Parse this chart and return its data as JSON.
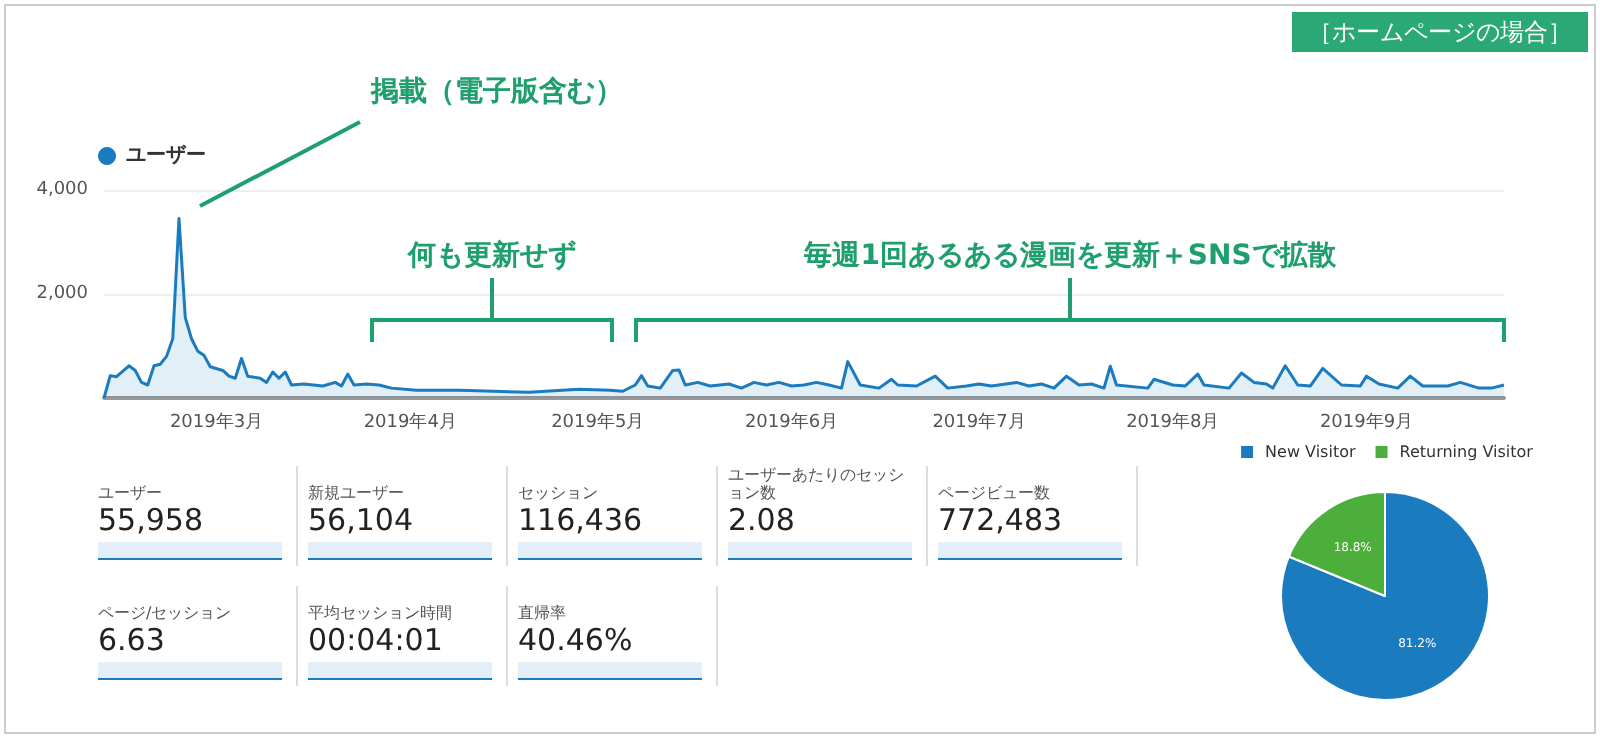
{
  "chart_data": [
    {
      "type": "area",
      "title": "［ホームページの場合］",
      "legend": "top left",
      "grid": "y",
      "x": [
        "2019-02-11",
        "2019-02-12",
        "2019-02-13",
        "2019-02-15",
        "2019-02-16",
        "2019-02-17",
        "2019-02-18",
        "2019-02-19",
        "2019-02-20",
        "2019-02-21",
        "2019-02-22",
        "2019-02-23",
        "2019-02-24",
        "2019-02-25",
        "2019-02-26",
        "2019-02-27",
        "2019-02-28",
        "2019-03-02",
        "2019-03-03",
        "2019-03-04",
        "2019-03-05",
        "2019-03-06",
        "2019-03-08",
        "2019-03-09",
        "2019-03-10",
        "2019-03-11",
        "2019-03-12",
        "2019-03-13",
        "2019-03-15",
        "2019-03-18",
        "2019-03-20",
        "2019-03-21",
        "2019-03-22",
        "2019-03-23",
        "2019-03-25",
        "2019-03-27",
        "2019-03-29",
        "2019-04-02",
        "2019-04-09",
        "2019-04-20",
        "2019-04-28",
        "2019-05-03",
        "2019-05-05",
        "2019-05-07",
        "2019-05-08",
        "2019-05-09",
        "2019-05-11",
        "2019-05-13",
        "2019-05-14",
        "2019-05-15",
        "2019-05-17",
        "2019-05-19",
        "2019-05-22",
        "2019-05-24",
        "2019-05-26",
        "2019-05-28",
        "2019-05-30",
        "2019-06-01",
        "2019-06-03",
        "2019-06-05",
        "2019-06-07",
        "2019-06-09",
        "2019-06-10",
        "2019-06-12",
        "2019-06-15",
        "2019-06-17",
        "2019-06-18",
        "2019-06-21",
        "2019-06-24",
        "2019-06-26",
        "2019-06-29",
        "2019-07-01",
        "2019-07-03",
        "2019-07-07",
        "2019-07-09",
        "2019-07-11",
        "2019-07-13",
        "2019-07-15",
        "2019-07-17",
        "2019-07-19",
        "2019-07-21",
        "2019-07-22",
        "2019-07-23",
        "2019-07-28",
        "2019-07-29",
        "2019-08-01",
        "2019-08-03",
        "2019-08-05",
        "2019-08-06",
        "2019-08-10",
        "2019-08-12",
        "2019-08-14",
        "2019-08-16",
        "2019-08-17",
        "2019-08-19",
        "2019-08-21",
        "2019-08-23",
        "2019-08-25",
        "2019-08-28",
        "2019-08-31",
        "2019-09-01",
        "2019-09-03",
        "2019-09-06",
        "2019-09-08",
        "2019-09-10",
        "2019-09-14",
        "2019-09-16",
        "2019-09-19",
        "2019-09-21",
        "2019-09-23"
      ],
      "series": [
        {
          "name": "ユーザー",
          "color": "#1a7bbf",
          "values": [
            0,
            430,
            410,
            620,
            530,
            300,
            250,
            620,
            650,
            800,
            1140,
            3450,
            1550,
            1140,
            900,
            820,
            600,
            530,
            420,
            380,
            760,
            420,
            380,
            300,
            500,
            380,
            500,
            250,
            270,
            230,
            300,
            230,
            460,
            250,
            270,
            250,
            190,
            150,
            150,
            110,
            170,
            150,
            130,
            250,
            430,
            230,
            190,
            530,
            540,
            250,
            300,
            230,
            270,
            190,
            300,
            250,
            300,
            230,
            250,
            300,
            250,
            190,
            700,
            250,
            190,
            360,
            250,
            230,
            420,
            190,
            230,
            270,
            230,
            300,
            230,
            270,
            190,
            420,
            250,
            270,
            190,
            610,
            250,
            190,
            360,
            250,
            230,
            460,
            250,
            190,
            480,
            300,
            270,
            190,
            620,
            250,
            230,
            570,
            250,
            230,
            420,
            270,
            190,
            420,
            230,
            230,
            300,
            190,
            190,
            250
          ]
        }
      ],
      "xlim": [
        "2019-02-11",
        "2019-09-23"
      ],
      "xticks": [
        {
          "value": "2019-03-01",
          "label": "2019年3月"
        },
        {
          "value": "2019-04-01",
          "label": "2019年4月"
        },
        {
          "value": "2019-05-01",
          "label": "2019年5月"
        },
        {
          "value": "2019-06-01",
          "label": "2019年6月"
        },
        {
          "value": "2019-07-01",
          "label": "2019年7月"
        },
        {
          "value": "2019-08-01",
          "label": "2019年8月"
        },
        {
          "value": "2019-09-01",
          "label": "2019年9月"
        }
      ],
      "ylim": [
        0,
        4000
      ],
      "yticks": [
        {
          "value": 2000,
          "label": "2,000"
        },
        {
          "value": 4000,
          "label": "4,000"
        }
      ],
      "annotations": [
        "掲載（電子版含む）",
        "何も更新せず",
        "毎週1回あるある漫画を更新＋SNSで拡散"
      ]
    },
    {
      "type": "other",
      "categories": [
        "ユーザー",
        "新規ユーザー",
        "セッション",
        "ユーザーあたりのセッション数",
        "ページビュー数",
        "ページ/セッション",
        "平均セッション時間",
        "直帰率"
      ],
      "value_labels": [
        "55,958",
        "56,104",
        "116,436",
        "2.08",
        "772,483",
        "6.63",
        "00:04:01",
        "40.46%"
      ]
    },
    {
      "type": "pie",
      "legend": "top",
      "categories": [
        "New Visitor",
        "Returning Visitor"
      ],
      "values": [
        81.2,
        18.8
      ],
      "colors": [
        "#1a7bbf",
        "#4cae3b"
      ],
      "value_labels": [
        "81.2%",
        "18.8%"
      ]
    }
  ]
}
